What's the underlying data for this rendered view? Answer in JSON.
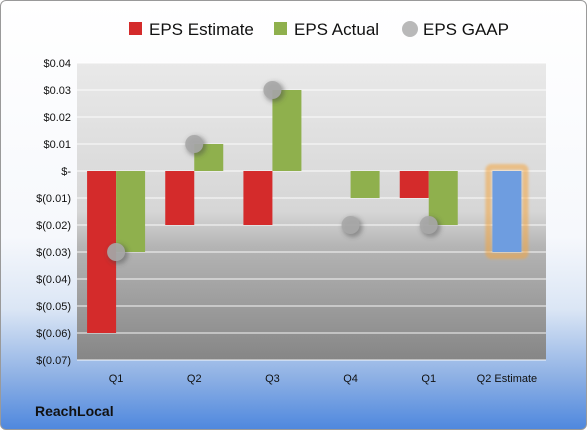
{
  "company": "ReachLocal",
  "chart_data": {
    "type": "bar",
    "categories": [
      "Q1",
      "Q2",
      "Q3",
      "Q4",
      "Q1",
      "Q2 Estimate"
    ],
    "series": [
      {
        "name": "EPS Estimate",
        "type": "bar",
        "color": "#d42b2b",
        "values": [
          -0.06,
          -0.02,
          -0.02,
          null,
          -0.01,
          null
        ]
      },
      {
        "name": "EPS Actual",
        "type": "bar",
        "color": "#8fb04d",
        "values": [
          -0.03,
          0.01,
          0.03,
          -0.01,
          -0.02,
          null
        ]
      },
      {
        "name": "EPS GAAP",
        "type": "marker",
        "color": "#a8a8a8",
        "values": [
          -0.03,
          0.01,
          0.03,
          -0.02,
          -0.02,
          null
        ]
      },
      {
        "name": "",
        "type": "bar",
        "highlight": true,
        "color": "#6e9de0",
        "glow_color": "#f4a640",
        "values": [
          null,
          null,
          null,
          null,
          null,
          -0.03
        ]
      }
    ],
    "ylim": [
      -0.07,
      0.04
    ],
    "yticks": [
      0.04,
      0.03,
      0.02,
      0.01,
      0,
      -0.01,
      -0.02,
      -0.03,
      -0.04,
      -0.05,
      -0.06,
      -0.07
    ],
    "ytick_labels": [
      "$0.04",
      "$0.03",
      "$0.02",
      "$0.01",
      "$-",
      "$(0.01)",
      "$(0.02)",
      "$(0.03)",
      "$(0.04)",
      "$(0.05)",
      "$(0.06)",
      "$(0.07)"
    ],
    "grid": true,
    "legend_position": "top"
  }
}
